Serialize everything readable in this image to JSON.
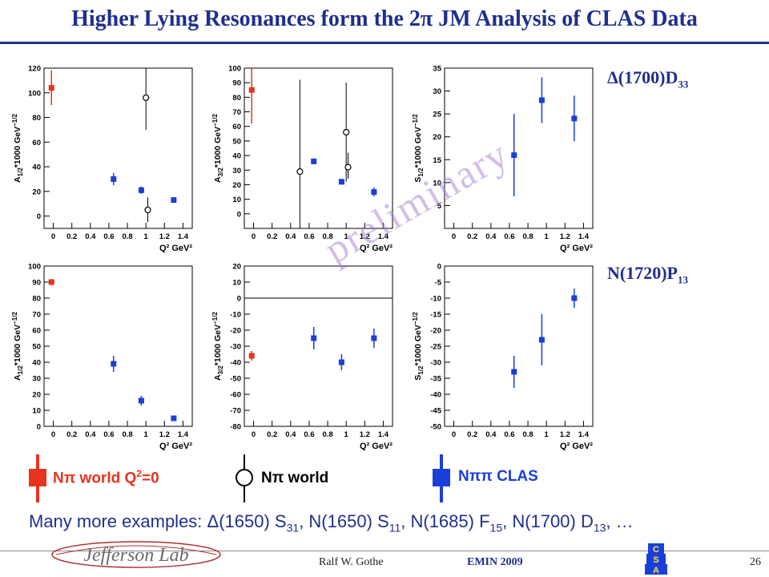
{
  "header": {
    "title": "Higher Lying Resonances form the 2π JM Analysis of CLAS Data"
  },
  "resonances": {
    "top": {
      "name": "Δ(1700)D",
      "sub": "33"
    },
    "bottom": {
      "name": "N(1720)P",
      "sub": "13"
    }
  },
  "watermark": "preliminary",
  "colors": {
    "title": "#1f2f8c",
    "npi_q0": "#e8331f",
    "npipi_clas": "#1a3fd8",
    "npi_world": "#000000"
  },
  "legend": {
    "npi_q0": {
      "text": "Nπ world Q",
      "sup": "2",
      "tail": "=0"
    },
    "npi_world": {
      "text": "Nπ world"
    },
    "npipi": {
      "text": "Nππ CLAS"
    }
  },
  "footnote": {
    "prefix": "Many more examples: ",
    "items": [
      {
        "name": "Δ(1650) S",
        "sub": "31",
        "sep": ", "
      },
      {
        "name": "N(1650) S",
        "sub": "11",
        "sep": ", "
      },
      {
        "name": "N(1685) F",
        "sub": "15",
        "sep": ", "
      },
      {
        "name": "N(1700) D",
        "sub": "13",
        "sep": ", …"
      }
    ]
  },
  "footer": {
    "author": "Ralf  W. Gothe",
    "event": "EMIN 2009",
    "page": "26",
    "logo_text": "Jefferson Lab",
    "csa_letters": [
      "C",
      "S",
      "A"
    ]
  },
  "chart_data": [
    {
      "type": "scatter",
      "id": "d1700-A12",
      "ylabel": "A1/2*1000 GeV^-1/2",
      "ylabel_main": "A",
      "ylabel_sub": "1/2",
      "ylabel_tail": "*1000 GeV",
      "xlabel": "Q² GeV²",
      "xlim": [
        -0.1,
        1.5
      ],
      "ylim": [
        -10,
        120
      ],
      "yticks": [
        0,
        20,
        40,
        60,
        80,
        100,
        120
      ],
      "xticks": [
        "0",
        "0.2",
        "0.4",
        "0.6",
        "0.8",
        "1",
        "1.2",
        "1.4"
      ],
      "series": [
        {
          "kind": "q0",
          "points": [
            {
              "x": -0.02,
              "y": 104,
              "elo": 90,
              "ehi": 118
            }
          ]
        },
        {
          "kind": "world",
          "points": [
            {
              "x": 1.0,
              "y": 96,
              "elo": 70,
              "ehi": 120
            },
            {
              "x": 1.02,
              "y": 5,
              "elo": -5,
              "ehi": 15
            }
          ]
        },
        {
          "kind": "clas",
          "points": [
            {
              "x": 0.65,
              "y": 30,
              "elo": 25,
              "ehi": 35
            },
            {
              "x": 0.95,
              "y": 21,
              "elo": 18,
              "ehi": 24
            },
            {
              "x": 1.3,
              "y": 13,
              "elo": 12,
              "ehi": 14
            }
          ]
        }
      ]
    },
    {
      "type": "scatter",
      "id": "d1700-A32",
      "ylabel": "A3/2*1000 GeV^-1/2",
      "ylabel_main": "A",
      "ylabel_sub": "3/2",
      "ylabel_tail": "*1000 GeV",
      "xlabel": "Q² GeV²",
      "xlim": [
        -0.1,
        1.5
      ],
      "ylim": [
        -10,
        100
      ],
      "yticks": [
        0,
        10,
        20,
        30,
        40,
        50,
        60,
        70,
        80,
        90,
        100
      ],
      "xticks": [
        "0",
        "0.2",
        "0.4",
        "0.6",
        "0.8",
        "1",
        "1.2",
        "1.4"
      ],
      "series": [
        {
          "kind": "q0",
          "points": [
            {
              "x": -0.02,
              "y": 85,
              "elo": 62,
              "ehi": 100
            }
          ]
        },
        {
          "kind": "world",
          "points": [
            {
              "x": 0.5,
              "y": 29,
              "elo": -10,
              "ehi": 92
            },
            {
              "x": 1.0,
              "y": 56,
              "elo": 22,
              "ehi": 90
            },
            {
              "x": 1.02,
              "y": 32,
              "elo": 24,
              "ehi": 42
            }
          ]
        },
        {
          "kind": "clas",
          "points": [
            {
              "x": 0.65,
              "y": 36,
              "elo": 34,
              "ehi": 38
            },
            {
              "x": 0.95,
              "y": 22,
              "elo": 20,
              "ehi": 24
            },
            {
              "x": 1.3,
              "y": 15,
              "elo": 12,
              "ehi": 18
            }
          ]
        }
      ]
    },
    {
      "type": "scatter",
      "id": "d1700-S12",
      "ylabel": "S1/2*1000 GeV^-1/2",
      "ylabel_main": "S",
      "ylabel_sub": "1/2",
      "ylabel_tail": "*1000 GeV",
      "xlabel": "Q² GeV²",
      "xlim": [
        -0.1,
        1.5
      ],
      "ylim": [
        0,
        35
      ],
      "yticks": [
        5,
        10,
        15,
        20,
        25,
        30,
        35
      ],
      "xticks": [
        "0",
        "0.2",
        "0.4",
        "0.6",
        "0.8",
        "1",
        "1.2",
        "1.4"
      ],
      "series": [
        {
          "kind": "clas",
          "points": [
            {
              "x": 0.65,
              "y": 16,
              "elo": 7,
              "ehi": 25
            },
            {
              "x": 0.95,
              "y": 28,
              "elo": 23,
              "ehi": 33
            },
            {
              "x": 1.3,
              "y": 24,
              "elo": 19,
              "ehi": 29
            }
          ]
        }
      ]
    },
    {
      "type": "scatter",
      "id": "n1720-A12",
      "ylabel": "A1/2*1000 GeV^-1/2",
      "ylabel_main": "A",
      "ylabel_sub": "1/2",
      "ylabel_tail": "*1000 GeV",
      "xlabel": "Q² GeV²",
      "xlim": [
        -0.1,
        1.5
      ],
      "ylim": [
        0,
        100
      ],
      "yticks": [
        0,
        10,
        20,
        30,
        40,
        50,
        60,
        70,
        80,
        90,
        100
      ],
      "xticks": [
        "0",
        "0.2",
        "0.4",
        "0.6",
        "0.8",
        "1",
        "1.2",
        "1.4"
      ],
      "series": [
        {
          "kind": "q0",
          "points": [
            {
              "x": -0.02,
              "y": 90,
              "elo": 88,
              "ehi": 92
            }
          ]
        },
        {
          "kind": "clas",
          "points": [
            {
              "x": 0.65,
              "y": 39,
              "elo": 34,
              "ehi": 44
            },
            {
              "x": 0.95,
              "y": 16,
              "elo": 13,
              "ehi": 19
            },
            {
              "x": 1.3,
              "y": 5,
              "elo": 4,
              "ehi": 6
            }
          ]
        }
      ]
    },
    {
      "type": "scatter",
      "id": "n1720-A32",
      "ylabel": "A3/2*1000 GeV^-1/2",
      "ylabel_main": "A",
      "ylabel_sub": "3/2",
      "ylabel_tail": "*1000 GeV",
      "xlabel": "Q² GeV²",
      "xlim": [
        -0.1,
        1.5
      ],
      "ylim": [
        -80,
        20
      ],
      "yticks": [
        -80,
        -70,
        -60,
        -50,
        -40,
        -30,
        -20,
        -10,
        0,
        10,
        20
      ],
      "xticks": [
        "0",
        "0.2",
        "0.4",
        "0.6",
        "0.8",
        "1",
        "1.2",
        "1.4"
      ],
      "zero_line": true,
      "series": [
        {
          "kind": "q0",
          "points": [
            {
              "x": -0.02,
              "y": -36,
              "elo": -39,
              "ehi": -33
            }
          ]
        },
        {
          "kind": "clas",
          "points": [
            {
              "x": 0.65,
              "y": -25,
              "elo": -32,
              "ehi": -18
            },
            {
              "x": 0.95,
              "y": -40,
              "elo": -45,
              "ehi": -35
            },
            {
              "x": 1.3,
              "y": -25,
              "elo": -31,
              "ehi": -19
            }
          ]
        }
      ]
    },
    {
      "type": "scatter",
      "id": "n1720-S12",
      "ylabel": "S1/2*1000 GeV^-1/2",
      "ylabel_main": "S",
      "ylabel_sub": "1/2",
      "ylabel_tail": "*1000 GeV",
      "xlabel": "Q² GeV²",
      "xlim": [
        -0.1,
        1.5
      ],
      "ylim": [
        -50,
        0
      ],
      "yticks": [
        -50,
        -45,
        -40,
        -35,
        -30,
        -25,
        -20,
        -15,
        -10,
        -5,
        0
      ],
      "xticks": [
        "0",
        "0.2",
        "0.4",
        "0.6",
        "0.8",
        "1",
        "1.2",
        "1.4"
      ],
      "series": [
        {
          "kind": "clas",
          "points": [
            {
              "x": 0.65,
              "y": -33,
              "elo": -38,
              "ehi": -28
            },
            {
              "x": 0.95,
              "y": -23,
              "elo": -31,
              "ehi": -15
            },
            {
              "x": 1.3,
              "y": -10,
              "elo": -13,
              "ehi": -7
            }
          ]
        }
      ]
    }
  ]
}
